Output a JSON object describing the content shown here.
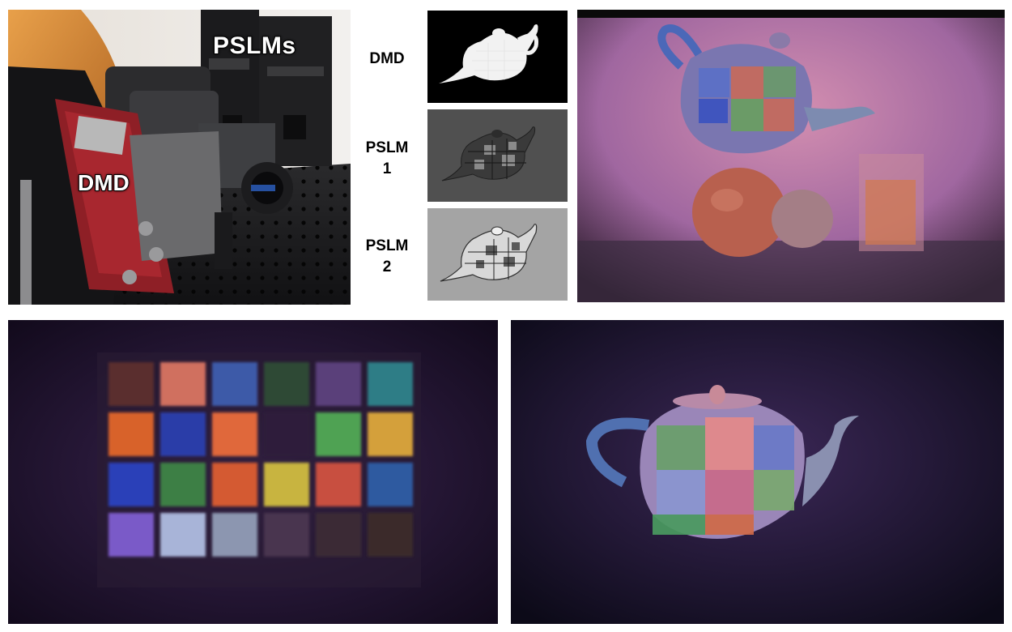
{
  "photo_labels": {
    "pslms": "PSLMs",
    "dmd": "DMD"
  },
  "pattern_labels": {
    "dmd": "DMD",
    "pslm1_line1": "PSLM",
    "pslm1_line2": "1",
    "pslm2_line1": "PSLM",
    "pslm2_line2": "2"
  },
  "colors": {
    "background": "#ffffff",
    "label_text": "#000000",
    "photo_label_fill": "#ffffff",
    "photo_label_stroke": "#000000",
    "pslm1_background": "#505050",
    "pslm2_background": "#a4a4a4"
  },
  "color_chart": {
    "rows": [
      [
        "#5a2e2e",
        "#d0705e",
        "#3d5aa8",
        "#2d4a34",
        "#5a3f7a",
        "#2f7d86"
      ],
      [
        "#d8622c",
        "#2c3ea8",
        "#e0683a",
        "#2e1f3a",
        "#4fa252",
        "#d4a03a"
      ],
      [
        "#2a40b8",
        "#3d7f45",
        "#d45a30",
        "#c8b440",
        "#c85040",
        "#2d5aa0"
      ],
      [
        "#7a5ac8",
        "#a8b4d8",
        "#8c96b0",
        "#4a3650",
        "#3a2a36",
        "#3a2c2a"
      ]
    ]
  }
}
